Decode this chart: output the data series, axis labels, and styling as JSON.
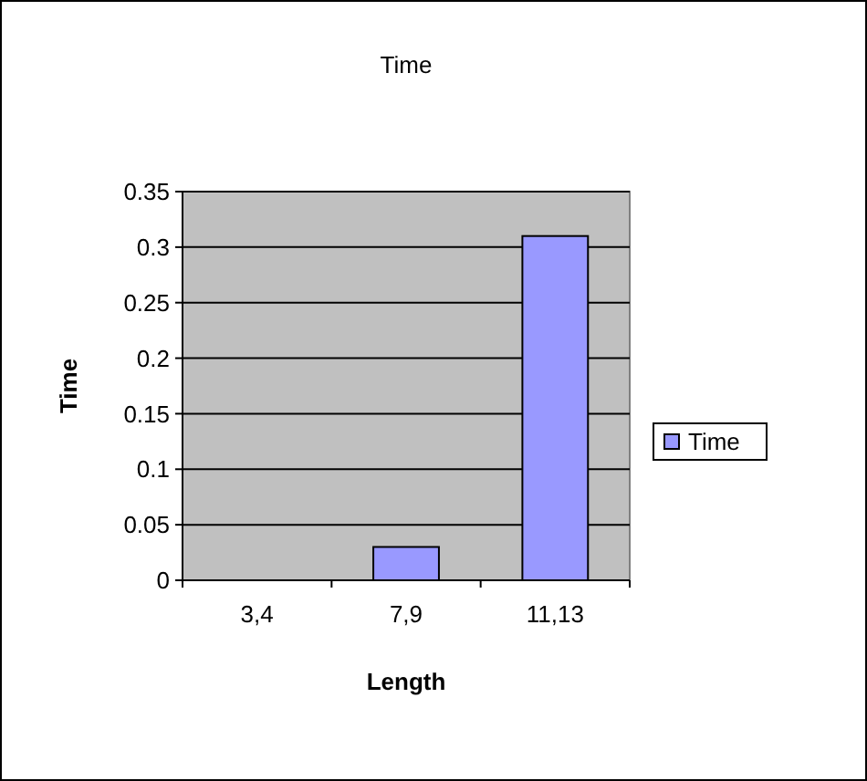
{
  "chart_data": {
    "type": "bar",
    "title": "Time",
    "xlabel": "Length",
    "ylabel": "Time",
    "categories": [
      "3,4",
      "7,9",
      "11,13"
    ],
    "series": [
      {
        "name": "Time",
        "color": "#9999ff",
        "values": [
          0,
          0.03,
          0.31
        ]
      }
    ],
    "ylim": [
      0,
      0.35
    ],
    "yticks": [
      0,
      0.05,
      0.1,
      0.15,
      0.2,
      0.25,
      0.3,
      0.35
    ],
    "grid": "y",
    "legend": "right"
  }
}
